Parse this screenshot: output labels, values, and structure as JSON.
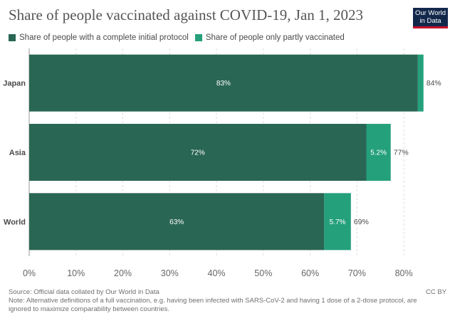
{
  "title": "Share of people vaccinated against COVID-19, Jan 1, 2023",
  "logo": {
    "line1": "Our World",
    "line2": "in Data"
  },
  "colors": {
    "complete": "#2a6654",
    "partial": "#24a07b",
    "grid": "#dddddd",
    "text": "#5b5b5b",
    "logo_bg": "#12284b",
    "logo_accent": "#c8102e"
  },
  "chart_data": {
    "type": "bar",
    "orientation": "horizontal",
    "stacked": true,
    "title": "Share of people vaccinated against COVID-19, Jan 1, 2023",
    "categories": [
      "Japan",
      "Asia",
      "World"
    ],
    "series": [
      {
        "name": "Share of people with a complete initial protocol",
        "values": [
          83,
          72,
          63
        ],
        "labels": [
          "83%",
          "72%",
          "63%"
        ]
      },
      {
        "name": "Share of people only partly vaccinated",
        "values": [
          1.2,
          5.2,
          5.7
        ],
        "labels": [
          "",
          "5.2%",
          "5.7%"
        ]
      }
    ],
    "totals": [
      "84%",
      "77%",
      "69%"
    ],
    "xlim": [
      0,
      85
    ],
    "xticks": [
      0,
      10,
      20,
      30,
      40,
      50,
      60,
      70,
      80
    ],
    "xtick_labels": [
      "0%",
      "10%",
      "20%",
      "30%",
      "40%",
      "50%",
      "60%",
      "70%",
      "80%"
    ],
    "grid": true,
    "legend_position": "top-left"
  },
  "footer": {
    "source": "Source: Official data collated by Our World in Data",
    "note": "Note: Alternative definitions of a full vaccination, e.g. having been infected with SARS-CoV-2 and having 1 dose of a 2-dose protocol, are ignored to maximize comparability between countries.",
    "license": "CC BY"
  }
}
